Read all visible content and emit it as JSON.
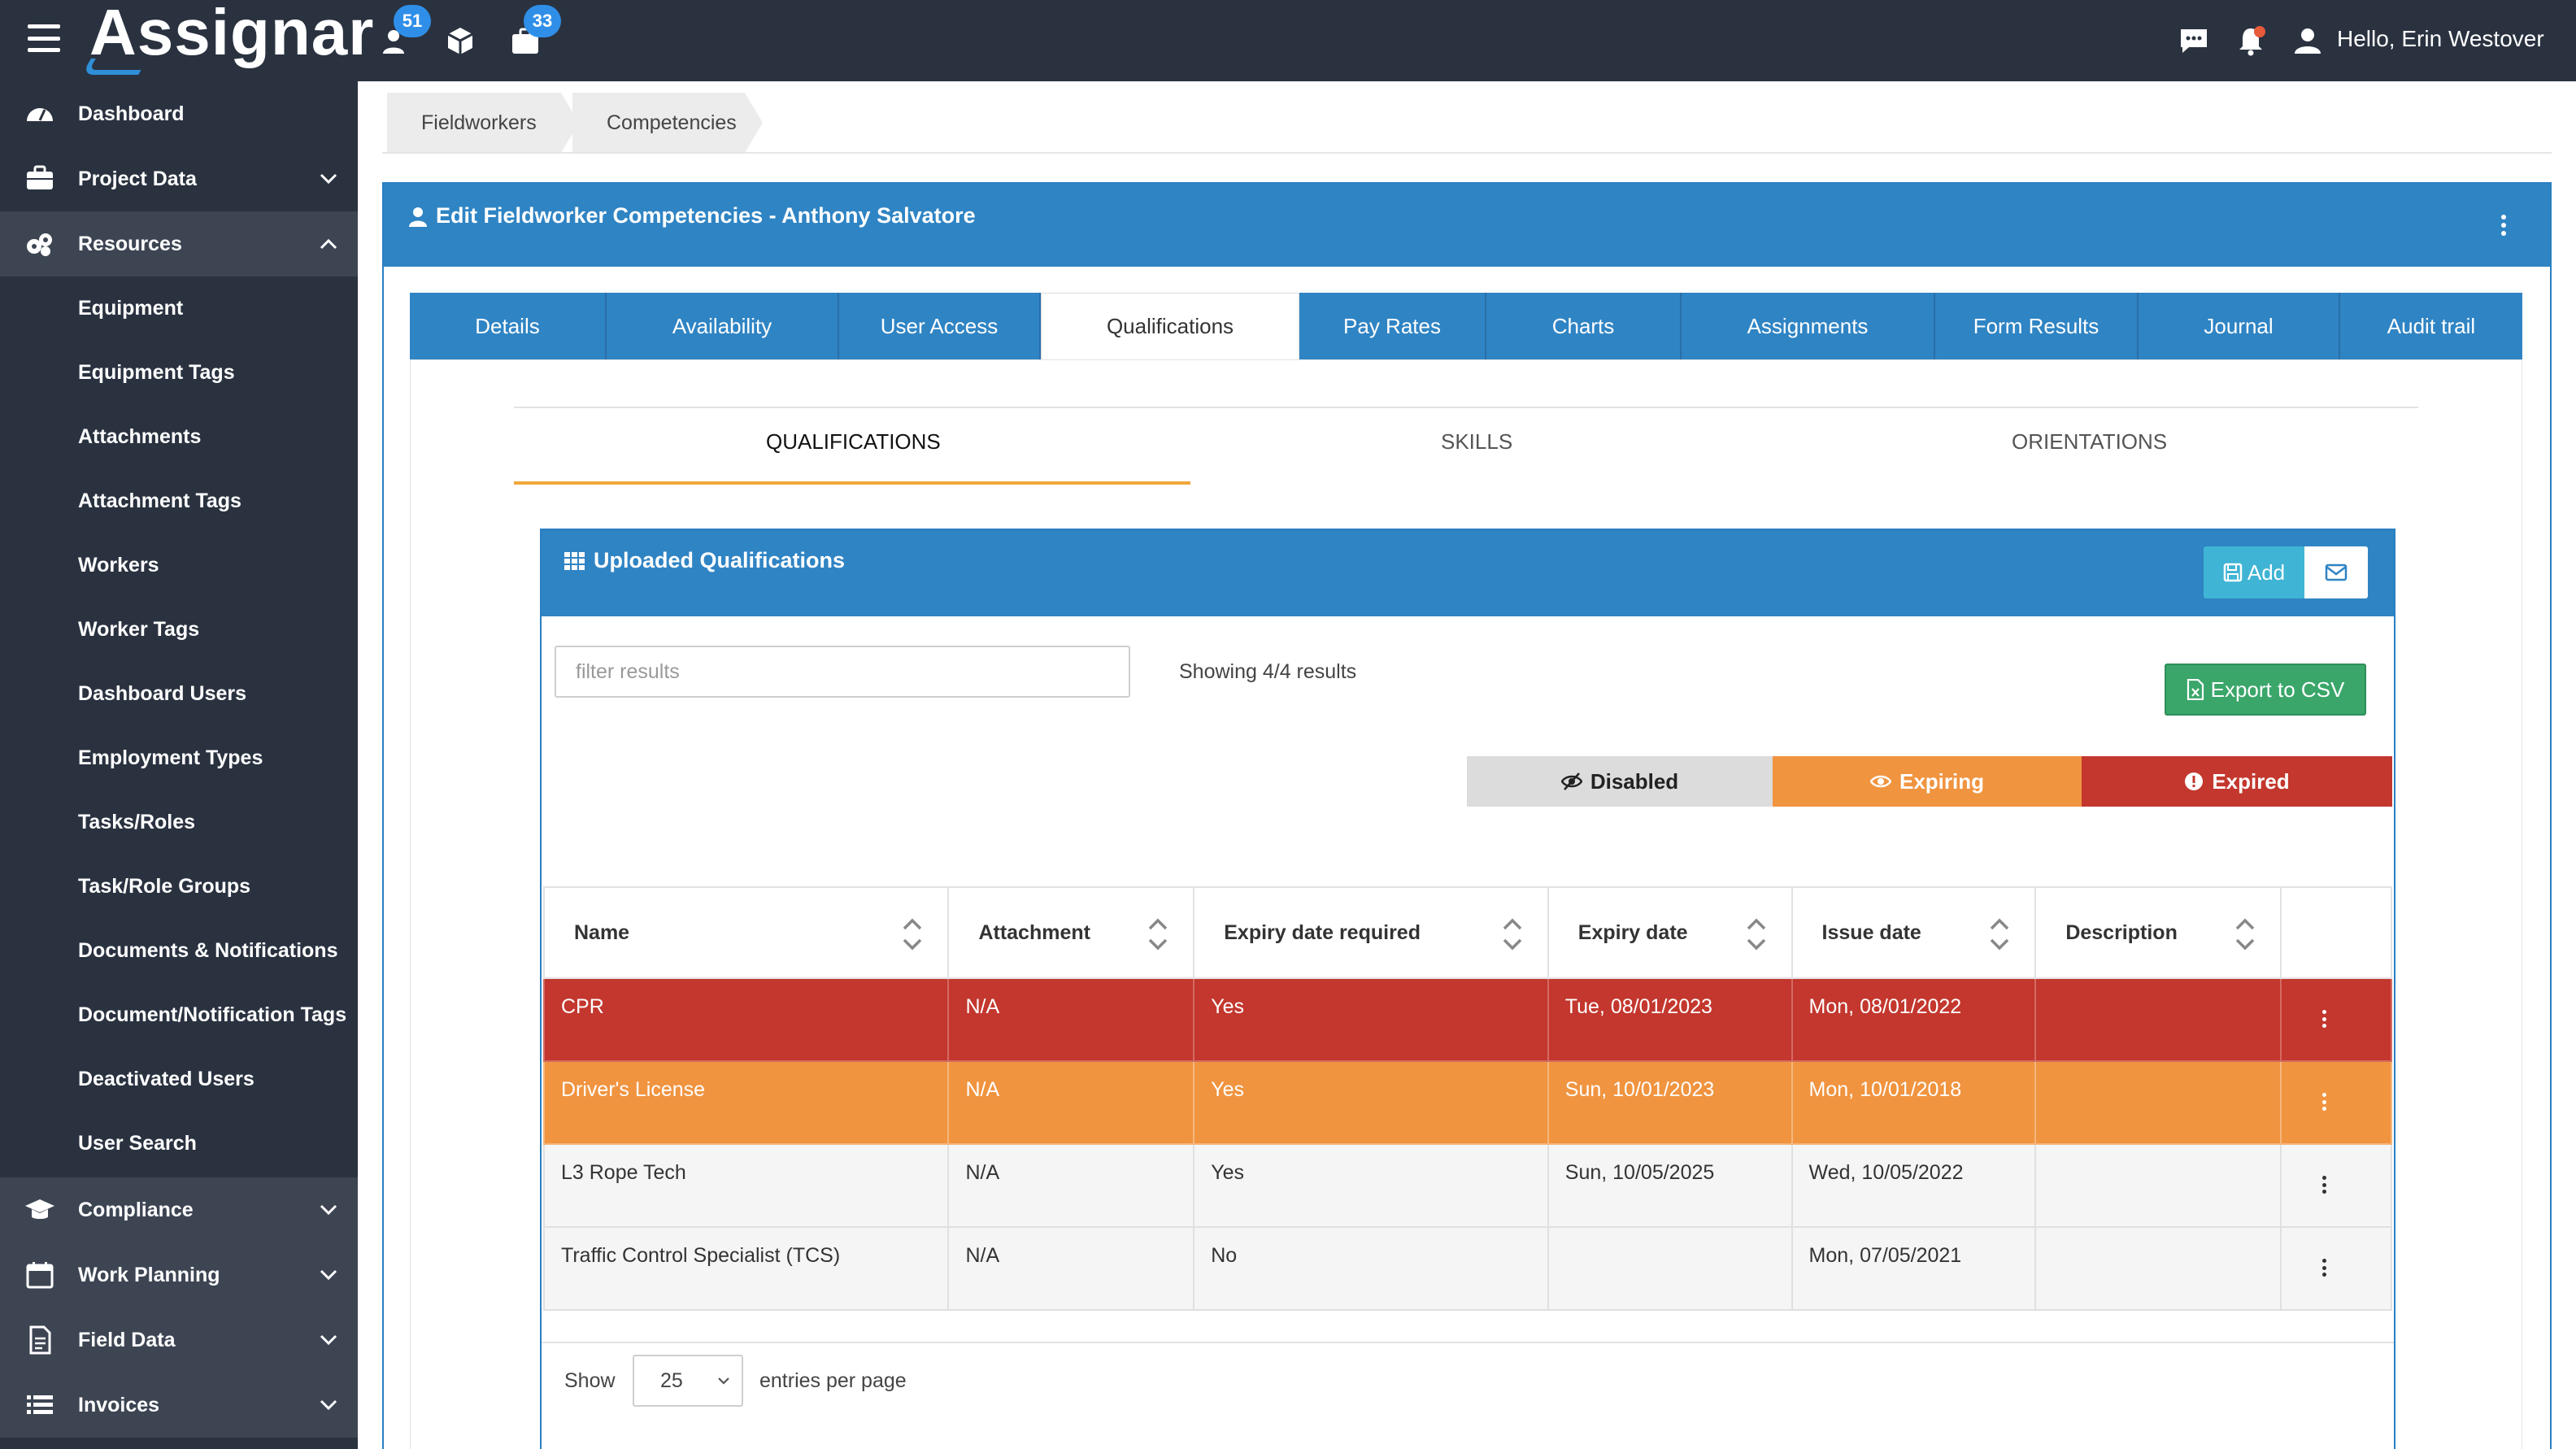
{
  "app": {
    "logo": "Assignar",
    "badges": {
      "users": "51",
      "jobs": "33"
    },
    "greeting": "Hello, Erin Westover"
  },
  "sidebar": {
    "main_items": [
      {
        "label": "Dashboard",
        "icon": "dashboard-icon",
        "expandable": false
      },
      {
        "label": "Project Data",
        "icon": "briefcase-icon",
        "expandable": true,
        "expanded": false
      },
      {
        "label": "Resources",
        "icon": "resources-icon",
        "expandable": true,
        "expanded": true
      }
    ],
    "resource_items": [
      "Equipment",
      "Equipment Tags",
      "Attachments",
      "Attachment Tags",
      "Workers",
      "Worker Tags",
      "Dashboard Users",
      "Employment Types",
      "Tasks/Roles",
      "Task/Role Groups",
      "Documents & Notifications",
      "Document/Notification Tags",
      "Deactivated Users",
      "User Search"
    ],
    "bottom_items": [
      {
        "label": "Compliance",
        "icon": "graduation-cap-icon"
      },
      {
        "label": "Work Planning",
        "icon": "calendar-icon"
      },
      {
        "label": "Field Data",
        "icon": "document-icon"
      },
      {
        "label": "Invoices",
        "icon": "list-icon"
      }
    ]
  },
  "breadcrumb": [
    "Fieldworkers",
    "Competencies"
  ],
  "panel": {
    "title": "Edit Fieldworker Competencies - Anthony Salvatore",
    "tabs": [
      "Details",
      "Availability",
      "User Access",
      "Qualifications",
      "Pay Rates",
      "Charts",
      "Assignments",
      "Form Results",
      "Journal",
      "Audit trail"
    ],
    "active_tab": "Qualifications",
    "subtabs": [
      "QUALIFICATIONS",
      "SKILLS",
      "ORIENTATIONS"
    ],
    "active_subtab": "QUALIFICATIONS"
  },
  "card": {
    "title": "Uploaded Qualifications",
    "add_label": "Add",
    "filter_placeholder": "filter results",
    "showing": "Showing 4/4 results",
    "export_label": "Export to CSV",
    "legend": {
      "disabled": "Disabled",
      "expiring": "Expiring",
      "expired": "Expired"
    },
    "colors": {
      "expired": "#c3372e",
      "expiring": "#f09440",
      "disabled": "#dcdcdc",
      "header": "#2f84c4"
    },
    "columns": [
      "Name",
      "Attachment",
      "Expiry date required",
      "Expiry date",
      "Issue date",
      "Description"
    ],
    "rows": [
      {
        "status": "expired",
        "name": "CPR",
        "attachment": "N/A",
        "expiry_required": "Yes",
        "expiry_date": "Tue, 08/01/2023",
        "issue_date": "Mon, 08/01/2022",
        "description": ""
      },
      {
        "status": "expiring",
        "name": "Driver's License",
        "attachment": "N/A",
        "expiry_required": "Yes",
        "expiry_date": "Sun, 10/01/2023",
        "issue_date": "Mon, 10/01/2018",
        "description": ""
      },
      {
        "status": "normal",
        "name": "L3 Rope Tech",
        "attachment": "N/A",
        "expiry_required": "Yes",
        "expiry_date": "Sun, 10/05/2025",
        "issue_date": "Wed, 10/05/2022",
        "description": ""
      },
      {
        "status": "normal",
        "name": "Traffic Control Specialist (TCS)",
        "attachment": "N/A",
        "expiry_required": "No",
        "expiry_date": "",
        "issue_date": "Mon, 07/05/2021",
        "description": ""
      }
    ],
    "pagination": {
      "show_label": "Show",
      "per_page": "25",
      "entries_label": "entries per page"
    }
  }
}
